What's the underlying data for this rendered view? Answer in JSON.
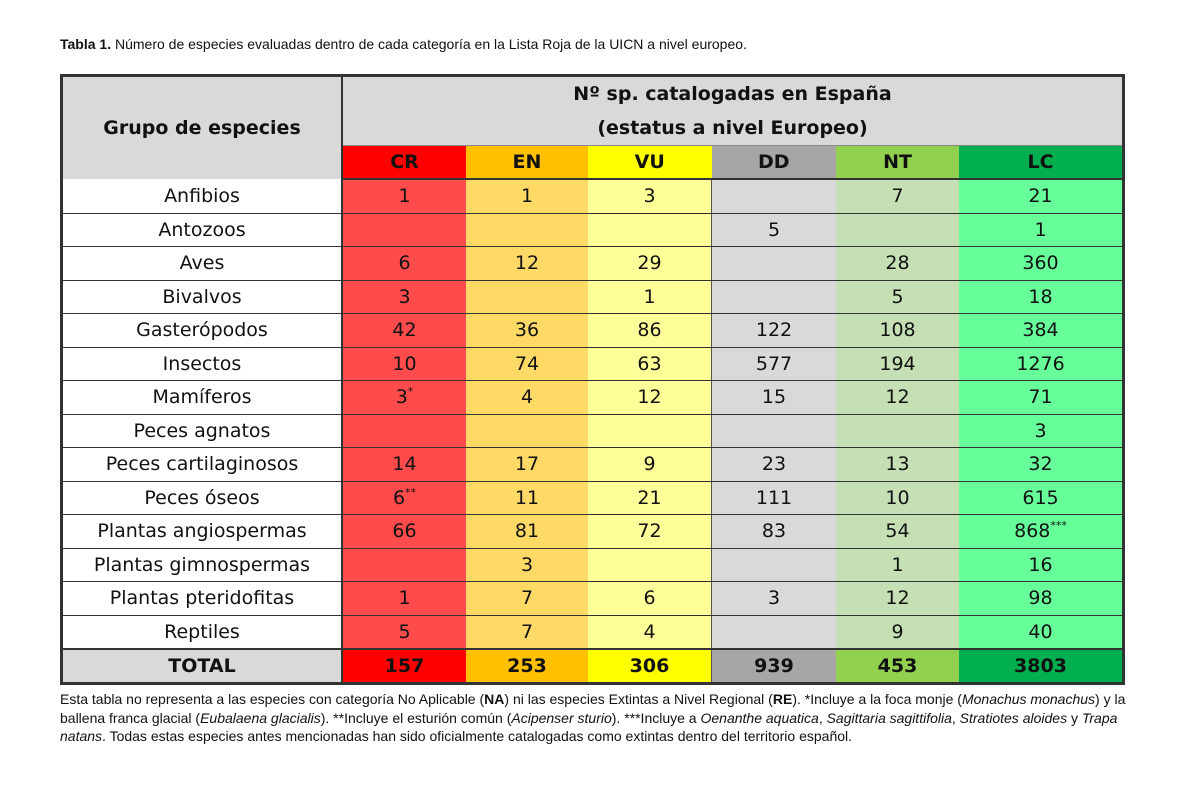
{
  "caption": {
    "label": "Tabla 1.",
    "text": " Número de especies evaluadas dentro de cada categoría en la Lista Roja de la UICN a nivel europeo."
  },
  "table": {
    "group_header": "Grupo de especies",
    "main_header_line1": "Nº sp. catalogadas en España",
    "main_header_line2": "(estatus a nivel Europeo)",
    "categories": [
      {
        "label": "CR",
        "header_color": "#ff0000",
        "cell_color": "#ff4b4b"
      },
      {
        "label": "EN",
        "header_color": "#ffc000",
        "cell_color": "#ffd966"
      },
      {
        "label": "VU",
        "header_color": "#ffff00",
        "cell_color": "#ffff99"
      },
      {
        "label": "DD",
        "header_color": "#a6a6a6",
        "cell_color": "#d9d9d9"
      },
      {
        "label": "NT",
        "header_color": "#92d050",
        "cell_color": "#c5e0b4"
      },
      {
        "label": "LC",
        "header_color": "#00b050",
        "cell_color": "#66ff99"
      }
    ],
    "rows": [
      {
        "name": "Anfibios",
        "values": [
          "1",
          "1",
          "3",
          "",
          "7",
          "21"
        ]
      },
      {
        "name": "Antozoos",
        "values": [
          "",
          "",
          "",
          "5",
          "",
          "1"
        ]
      },
      {
        "name": "Aves",
        "values": [
          "6",
          "12",
          "29",
          "",
          "28",
          "360"
        ]
      },
      {
        "name": "Bivalvos",
        "values": [
          "3",
          "",
          "1",
          "",
          "5",
          "18"
        ]
      },
      {
        "name": "Gasterópodos",
        "values": [
          "42",
          "36",
          "86",
          "122",
          "108",
          "384"
        ]
      },
      {
        "name": "Insectos",
        "values": [
          "10",
          "74",
          "63",
          "577",
          "194",
          "1276"
        ]
      },
      {
        "name": "Mamíferos",
        "values": [
          "3",
          "4",
          "12",
          "15",
          "12",
          "71"
        ],
        "sup": {
          "0": "*"
        }
      },
      {
        "name": "Peces agnatos",
        "values": [
          "",
          "",
          "",
          "",
          "",
          "3"
        ]
      },
      {
        "name": "Peces cartilaginosos",
        "values": [
          "14",
          "17",
          "9",
          "23",
          "13",
          "32"
        ]
      },
      {
        "name": "Peces óseos",
        "values": [
          "6",
          "11",
          "21",
          "111",
          "10",
          "615"
        ],
        "sup": {
          "0": "**"
        }
      },
      {
        "name": "Plantas angiospermas",
        "values": [
          "66",
          "81",
          "72",
          "83",
          "54",
          "868"
        ],
        "sup": {
          "5": "***"
        }
      },
      {
        "name": "Plantas gimnospermas",
        "values": [
          "",
          "3",
          "",
          "",
          "1",
          "16"
        ]
      },
      {
        "name": "Plantas pteridofitas",
        "values": [
          "1",
          "7",
          "6",
          "3",
          "12",
          "98"
        ]
      },
      {
        "name": "Reptiles",
        "values": [
          "5",
          "7",
          "4",
          "",
          "9",
          "40"
        ]
      }
    ],
    "total": {
      "name": "TOTAL",
      "values": [
        "157",
        "253",
        "306",
        "939",
        "453",
        "3803"
      ]
    }
  },
  "footnote": [
    {
      "t": "Esta tabla no representa a las especies con categoría No Aplicable ("
    },
    {
      "t": "NA",
      "b": true
    },
    {
      "t": ") ni las especies Extintas a Nivel Regional ("
    },
    {
      "t": "RE",
      "b": true
    },
    {
      "t": "). *Incluye a la foca monje ("
    },
    {
      "t": "Monachus monachus",
      "i": true
    },
    {
      "t": ") y la ballena franca glacial ("
    },
    {
      "t": "Eubalaena glacialis",
      "i": true
    },
    {
      "t": "). **Incluye el esturión común ("
    },
    {
      "t": "Acipenser sturio",
      "i": true
    },
    {
      "t": "). ***Incluye a "
    },
    {
      "t": "Oenanthe aquatica",
      "i": true
    },
    {
      "t": ", "
    },
    {
      "t": "Sagittaria sagittifolia",
      "i": true
    },
    {
      "t": ", "
    },
    {
      "t": "Stratiotes aloides",
      "i": true
    },
    {
      "t": " y "
    },
    {
      "t": "Trapa natans",
      "i": true
    },
    {
      "t": ". Todas estas especies antes mencionadas han sido oficialmente catalogadas como extintas dentro del territorio español."
    }
  ]
}
